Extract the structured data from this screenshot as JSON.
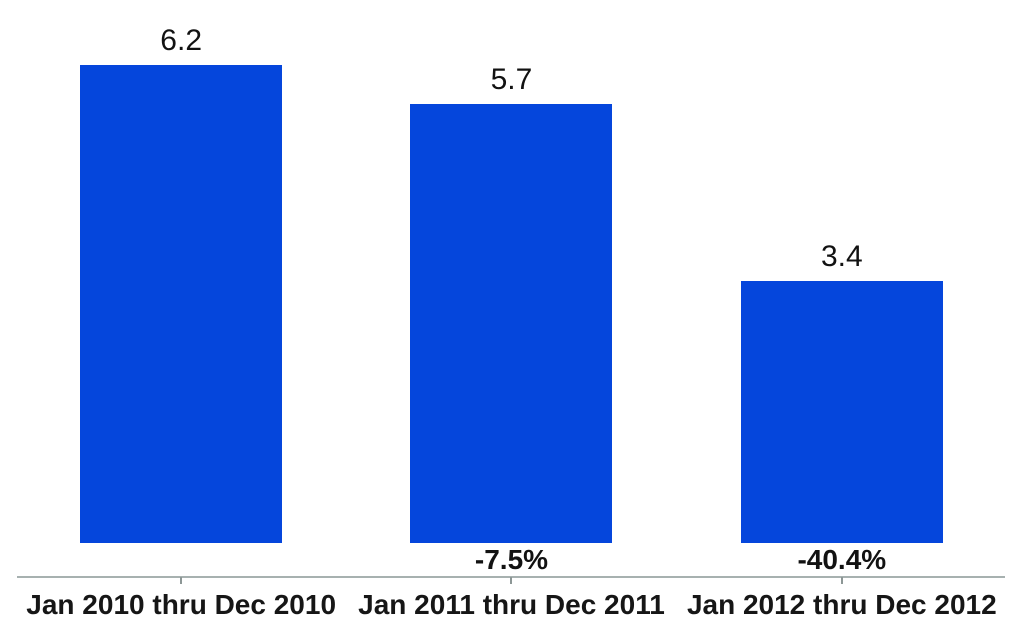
{
  "chart_data": {
    "type": "bar",
    "categories": [
      "Jan 2010 thru Dec 2010",
      "Jan 2011 thru Dec 2011",
      "Jan 2012 thru Dec 2012"
    ],
    "values": [
      6.2,
      5.7,
      3.4
    ],
    "bar_value_labels": [
      "6.2",
      "5.7",
      "3.4"
    ],
    "pct_change_labels": [
      "",
      "-7.5%",
      "-40.4%"
    ],
    "bar_color": "#0546dc",
    "axis_line_color": "#a7b1b0",
    "tick_color": "#8d9796",
    "text_color": "#121212",
    "ylim": [
      0,
      7.05
    ],
    "grid": "off",
    "legend": "none",
    "xlabel": "",
    "ylabel": ""
  }
}
